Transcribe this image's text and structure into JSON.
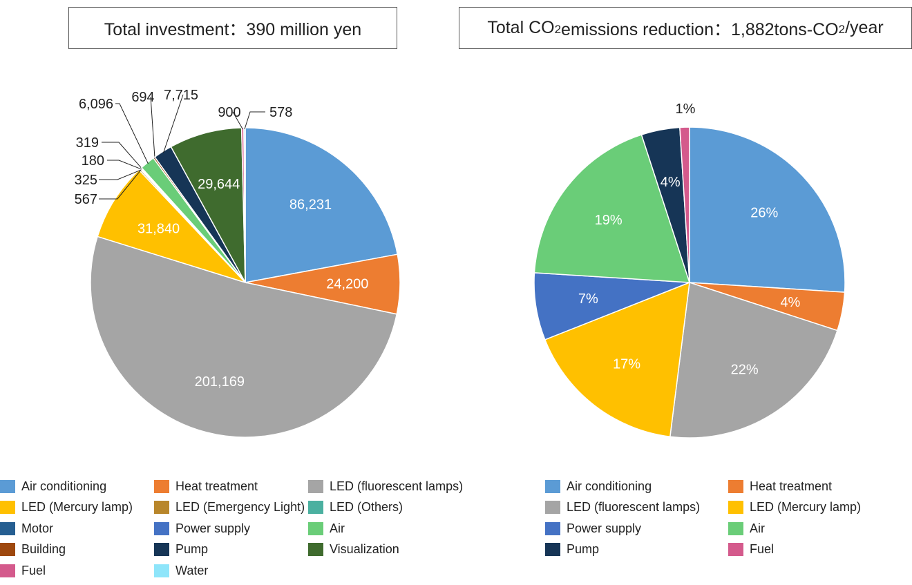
{
  "titles": {
    "left": {
      "text": "Total investment：390 million yen"
    },
    "right": {
      "pre": "Total CO",
      "sub1": "2",
      "mid": " emissions reduction：1,882tons-CO",
      "sub2": "2",
      "post": "/year"
    }
  },
  "colors": {
    "air_conditioning": "#5B9BD5",
    "heat_treatment": "#ED7D31",
    "led_fluorescent": "#A5A5A5",
    "led_mercury": "#FFC000",
    "led_emergency": "#B8862B",
    "led_others": "#4BB0A0",
    "motor": "#255E91",
    "power_supply": "#4472C4",
    "air": "#6ACD78",
    "building": "#9E480E",
    "pump": "#163556",
    "visualization": "#3F6B2E",
    "fuel": "#D45A8C",
    "water": "#8EE5FA"
  },
  "chart_data": [
    {
      "type": "pie",
      "title": "Total investment：390 million yen",
      "slices": [
        {
          "label": "Air conditioning",
          "value": 86231,
          "display": "86,231",
          "color_key": "air_conditioning"
        },
        {
          "label": "Heat treatment",
          "value": 24200,
          "display": "24,200",
          "color_key": "heat_treatment"
        },
        {
          "label": "LED (fluorescent lamps)",
          "value": 201169,
          "display": "201,169",
          "color_key": "led_fluorescent"
        },
        {
          "label": "LED (Mercury lamp)",
          "value": 31840,
          "display": "31,840",
          "color_key": "led_mercury"
        },
        {
          "label": "LED (Emergency Light)",
          "value": 567,
          "display": "567",
          "color_key": "led_emergency"
        },
        {
          "label": "LED (Others)",
          "value": 325,
          "display": "325",
          "color_key": "led_others"
        },
        {
          "label": "Motor",
          "value": 180,
          "display": "180",
          "color_key": "motor"
        },
        {
          "label": "Power supply",
          "value": 319,
          "display": "319",
          "color_key": "power_supply"
        },
        {
          "label": "Air",
          "value": 6096,
          "display": "6,096",
          "color_key": "air"
        },
        {
          "label": "Building",
          "value": 694,
          "display": "694",
          "color_key": "building"
        },
        {
          "label": "Pump",
          "value": 7715,
          "display": "7,715",
          "color_key": "pump"
        },
        {
          "label": "Visualization",
          "value": 29644,
          "display": "29,644",
          "color_key": "visualization"
        },
        {
          "label": "Fuel",
          "value": 900,
          "display": "900",
          "color_key": "fuel"
        },
        {
          "label": "Water",
          "value": 578,
          "display": "578",
          "color_key": "water"
        }
      ],
      "legend": [
        "Air conditioning",
        "Heat treatment",
        "LED (fluorescent lamps)",
        "LED (Mercury lamp)",
        "LED (Emergency Light)",
        "LED (Others)",
        "Motor",
        "Power supply",
        "Air",
        "Building",
        "Pump",
        "Visualization",
        "Fuel",
        "Water"
      ],
      "legend_position": "bottom"
    },
    {
      "type": "pie",
      "title": "Total CO2 emissions reduction：1,882tons-CO2/year",
      "slices": [
        {
          "label": "Air conditioning",
          "value": 26,
          "display": "26%",
          "color_key": "air_conditioning"
        },
        {
          "label": "Heat treatment",
          "value": 4,
          "display": "4%",
          "color_key": "heat_treatment"
        },
        {
          "label": "LED (fluorescent lamps)",
          "value": 22,
          "display": "22%",
          "color_key": "led_fluorescent"
        },
        {
          "label": "LED (Mercury lamp)",
          "value": 17,
          "display": "17%",
          "color_key": "led_mercury"
        },
        {
          "label": "Power supply",
          "value": 7,
          "display": "7%",
          "color_key": "power_supply"
        },
        {
          "label": "Air",
          "value": 19,
          "display": "19%",
          "color_key": "air"
        },
        {
          "label": "Pump",
          "value": 4,
          "display": "4%",
          "color_key": "pump"
        },
        {
          "label": "Fuel",
          "value": 1,
          "display": "1%",
          "color_key": "fuel"
        }
      ],
      "legend": [
        "Air conditioning",
        "Heat treatment",
        "LED (fluorescent lamps)",
        "LED (Mercury lamp)",
        "Power supply",
        "Air",
        "Pump",
        "Fuel"
      ],
      "legend_position": "bottom"
    }
  ]
}
